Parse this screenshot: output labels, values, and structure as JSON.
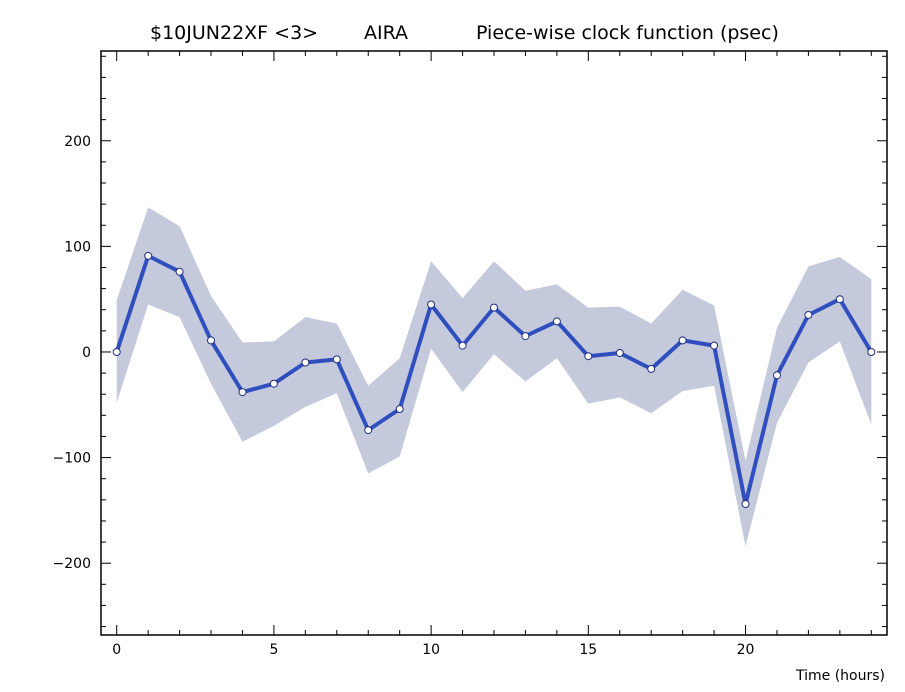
{
  "title": {
    "experiment": "$10JUN22XF <3>",
    "station": "AIRA",
    "description": "Piece-wise clock function (psec)"
  },
  "chart_data": {
    "type": "line",
    "title": "$10JUN22XF <3>  AIRA     Piece-wise clock function (psec)",
    "xlabel": "Time (hours)",
    "ylabel": "",
    "xlim": [
      -0.5,
      24.5
    ],
    "ylim": [
      -268,
      285
    ],
    "x_ticks": [
      0,
      5,
      10,
      15,
      20
    ],
    "x_tick_labels": [
      "0",
      "5",
      "10",
      "15",
      "20"
    ],
    "y_ticks": [
      -200,
      -100,
      0,
      100,
      200
    ],
    "y_tick_labels": [
      "−200",
      "−100",
      "0",
      "100",
      "200"
    ],
    "grid": false,
    "legend": "none",
    "series": [
      {
        "x": [
          0,
          1,
          2,
          3,
          4,
          5,
          6,
          7,
          8,
          9,
          10,
          11,
          12,
          13,
          14,
          15,
          16,
          17,
          18,
          19,
          20,
          21,
          22,
          23,
          24
        ],
        "values": [
          0,
          91,
          76,
          11,
          -38,
          -30,
          -10,
          -7,
          -74,
          -54,
          45,
          6,
          42,
          15,
          29,
          -4,
          -1,
          -16,
          11,
          6,
          -144,
          -22,
          35,
          50,
          0
        ],
        "upper": [
          49,
          137,
          119,
          53,
          9,
          10,
          33,
          27,
          -32,
          -6,
          86,
          51,
          86,
          58,
          64,
          42,
          43,
          27,
          59,
          44,
          -103,
          23,
          81,
          90,
          69
        ],
        "lower": [
          -48,
          45,
          33,
          -30,
          -85,
          -70,
          -52,
          -39,
          -115,
          -99,
          3,
          -38,
          -2,
          -28,
          -6,
          -49,
          -43,
          -58,
          -37,
          -32,
          -184,
          -67,
          -10,
          10,
          -69
        ]
      }
    ],
    "colors": {
      "line": "#2f4fbf",
      "band": "#c5c9dc",
      "marker_fill": "#ffffff",
      "marker_edge": "#1f2f7a"
    }
  }
}
